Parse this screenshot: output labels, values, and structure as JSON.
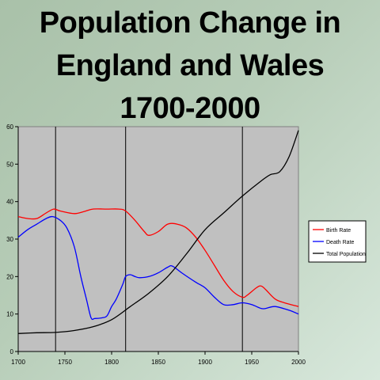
{
  "title_lines": [
    "Population Change in",
    "England and Wales",
    "1700-2000"
  ],
  "colors": {
    "birth": "#ff0000",
    "death": "#0000ff",
    "population": "#000000",
    "plot_bg": "#c0c0c0"
  },
  "chart_data": {
    "type": "line",
    "title": "Population Change in England and Wales 1700-2000",
    "xlabel": "",
    "ylabel": "",
    "xlim": [
      1700,
      2000
    ],
    "ylim": [
      0,
      60
    ],
    "xticks": [
      1700,
      1750,
      1800,
      1850,
      1900,
      1950,
      2000
    ],
    "yticks": [
      0,
      10,
      20,
      30,
      40,
      50,
      60
    ],
    "vertical_lines": [
      1740,
      1815,
      1940
    ],
    "grid": false,
    "legend_position": "right",
    "series": [
      {
        "name": "Birth Rate",
        "x": [
          1700,
          1710,
          1720,
          1730,
          1738,
          1745,
          1760,
          1770,
          1780,
          1795,
          1808,
          1815,
          1825,
          1835,
          1840,
          1850,
          1860,
          1870,
          1880,
          1890,
          1900,
          1910,
          1920,
          1930,
          1940,
          1945,
          1955,
          1960,
          1965,
          1975,
          1985,
          2000
        ],
        "values": [
          36,
          35.5,
          35.5,
          37,
          38,
          37.5,
          36.8,
          37.3,
          38,
          38,
          38,
          37.5,
          35,
          32,
          31,
          32,
          34,
          34,
          33,
          30.5,
          27,
          23,
          19,
          16,
          14.5,
          15,
          17,
          17.5,
          16.5,
          14,
          13,
          12
        ]
      },
      {
        "name": "Death Rate",
        "x": [
          1700,
          1710,
          1720,
          1730,
          1737,
          1745,
          1752,
          1760,
          1767,
          1773,
          1778,
          1782,
          1790,
          1795,
          1800,
          1805,
          1812,
          1815,
          1820,
          1825,
          1830,
          1840,
          1850,
          1860,
          1865,
          1875,
          1890,
          1900,
          1910,
          1920,
          1930,
          1940,
          1950,
          1960,
          1965,
          1975,
          1990,
          2000
        ],
        "values": [
          30.5,
          32.5,
          34,
          35.5,
          36,
          35,
          33,
          28,
          20,
          14,
          9,
          8.8,
          9,
          9.5,
          12,
          14,
          18,
          20,
          20.5,
          20,
          19.7,
          20,
          21,
          22.5,
          22.8,
          21,
          18.5,
          17,
          14.5,
          12.5,
          12.5,
          13,
          12.5,
          11.5,
          11.5,
          12,
          11,
          10
        ]
      },
      {
        "name": "Total Population",
        "x": [
          1700,
          1720,
          1740,
          1760,
          1780,
          1800,
          1820,
          1840,
          1860,
          1880,
          1900,
          1920,
          1940,
          1960,
          1970,
          1980,
          1990,
          2000
        ],
        "values": [
          4.8,
          5,
          5.1,
          5.6,
          6.6,
          8.5,
          12,
          15.6,
          20,
          26,
          32.5,
          37,
          41.5,
          45.5,
          47.2,
          48,
          52,
          59
        ]
      }
    ]
  }
}
